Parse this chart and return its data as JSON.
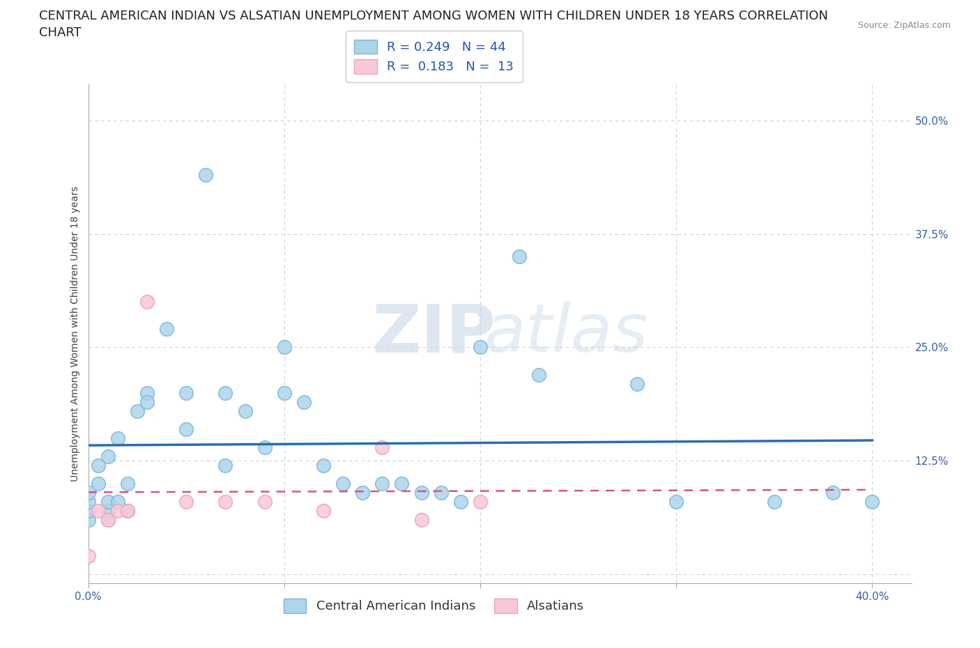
{
  "title": "CENTRAL AMERICAN INDIAN VS ALSATIAN UNEMPLOYMENT AMONG WOMEN WITH CHILDREN UNDER 18 YEARS CORRELATION\nCHART",
  "source_text": "Source: ZipAtlas.com",
  "ylabel": "Unemployment Among Women with Children Under 18 years",
  "xlim": [
    0.0,
    0.42
  ],
  "ylim": [
    -0.01,
    0.54
  ],
  "xticks": [
    0.0,
    0.1,
    0.2,
    0.3,
    0.4
  ],
  "xtick_labels": [
    "0.0%",
    "",
    "",
    "",
    "40.0%"
  ],
  "yticks": [
    0.0,
    0.125,
    0.25,
    0.375,
    0.5
  ],
  "ytick_labels": [
    "",
    "12.5%",
    "25.0%",
    "37.5%",
    "50.0%"
  ],
  "blue_edge": "#7ab8d9",
  "blue_fill": "#aed4ea",
  "pink_edge": "#f4a0b8",
  "pink_fill": "#f9c8d8",
  "line_blue": "#2b6cb0",
  "line_pink": "#e05080",
  "grid_color": "#d0d0d0",
  "background_color": "#ffffff",
  "watermark_zip": "ZIP",
  "watermark_atlas": "atlas",
  "R_blue": 0.249,
  "N_blue": 44,
  "R_pink": 0.183,
  "N_pink": 13,
  "blue_scatter_x": [
    0.0,
    0.0,
    0.0,
    0.0,
    0.005,
    0.005,
    0.01,
    0.01,
    0.01,
    0.01,
    0.015,
    0.015,
    0.02,
    0.02,
    0.025,
    0.03,
    0.03,
    0.04,
    0.05,
    0.05,
    0.06,
    0.07,
    0.07,
    0.08,
    0.09,
    0.1,
    0.1,
    0.11,
    0.12,
    0.13,
    0.14,
    0.15,
    0.16,
    0.17,
    0.18,
    0.19,
    0.2,
    0.22,
    0.23,
    0.28,
    0.3,
    0.35,
    0.38,
    0.4
  ],
  "blue_scatter_y": [
    0.06,
    0.07,
    0.08,
    0.09,
    0.1,
    0.12,
    0.06,
    0.07,
    0.08,
    0.13,
    0.08,
    0.15,
    0.07,
    0.1,
    0.18,
    0.2,
    0.19,
    0.27,
    0.16,
    0.2,
    0.44,
    0.2,
    0.12,
    0.18,
    0.14,
    0.2,
    0.25,
    0.19,
    0.12,
    0.1,
    0.09,
    0.1,
    0.1,
    0.09,
    0.09,
    0.08,
    0.25,
    0.35,
    0.22,
    0.21,
    0.08,
    0.08,
    0.09,
    0.08
  ],
  "pink_scatter_x": [
    0.0,
    0.005,
    0.01,
    0.015,
    0.02,
    0.03,
    0.05,
    0.07,
    0.09,
    0.12,
    0.15,
    0.17,
    0.2
  ],
  "pink_scatter_y": [
    0.02,
    0.07,
    0.06,
    0.07,
    0.07,
    0.3,
    0.08,
    0.08,
    0.08,
    0.07,
    0.14,
    0.06,
    0.08
  ],
  "title_fontsize": 13,
  "axis_label_fontsize": 10,
  "tick_fontsize": 11,
  "legend_fontsize": 13,
  "source_fontsize": 9
}
